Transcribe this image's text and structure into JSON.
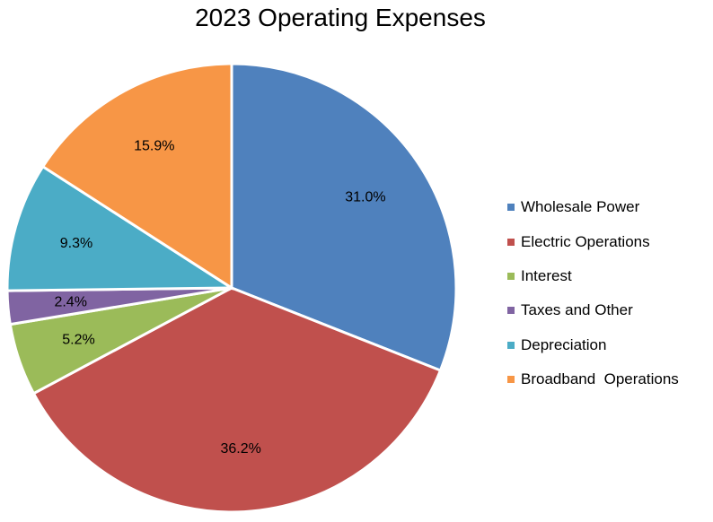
{
  "chart_data": {
    "type": "pie",
    "title": "2023 Operating Expenses",
    "categories": [
      "Wholesale Power",
      "Electric Operations",
      "Interest",
      "Taxes and Other",
      "Depreciation",
      "Broadband  Operations"
    ],
    "values": [
      31.0,
      36.2,
      5.2,
      2.4,
      9.3,
      15.9
    ],
    "labels": [
      "31.0%",
      "36.2%",
      "5.2%",
      "2.4%",
      "9.3%",
      "15.9%"
    ],
    "colors": [
      "#4F81BD",
      "#C0504D",
      "#9BBB59",
      "#8064A2",
      "#4BACC6",
      "#F79646"
    ],
    "start_angle": "12 o'clock",
    "direction": "clockwise",
    "legend_position": "right"
  }
}
